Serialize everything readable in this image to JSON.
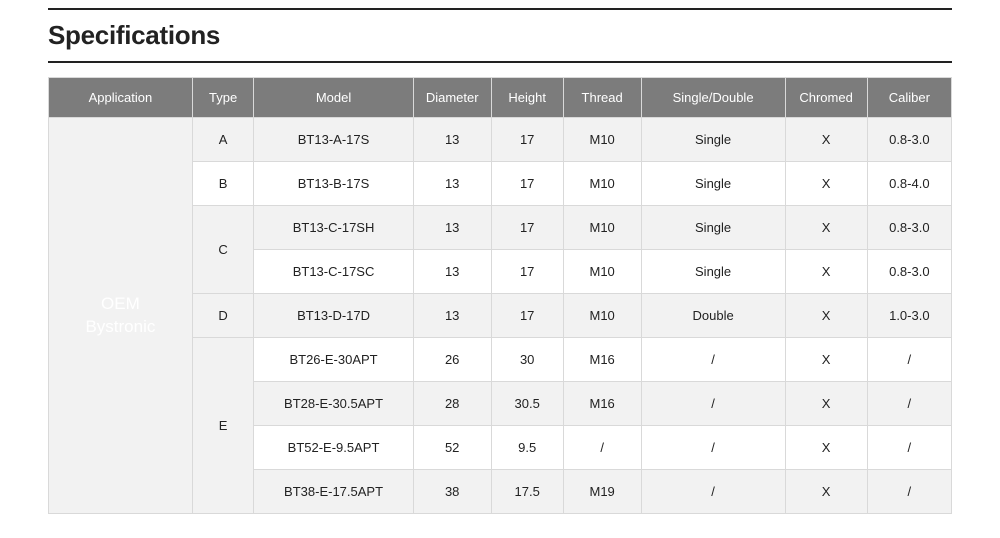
{
  "title": "Specifications",
  "colors": {
    "header_bg": "#7c7c7c",
    "header_fg": "#ffffff",
    "row_odd_bg": "#f2f2f2",
    "row_even_bg": "#ffffff",
    "border": "#d9d9d9",
    "rule": "#222222"
  },
  "table": {
    "columns": [
      "Application",
      "Type",
      "Model",
      "Diameter",
      "Height",
      "Thread",
      "Single/Double",
      "Chromed",
      "Caliber"
    ],
    "application": "OEM\nBystronic",
    "type_groups": [
      {
        "type": "A",
        "rows": 1
      },
      {
        "type": "B",
        "rows": 1
      },
      {
        "type": "C",
        "rows": 2
      },
      {
        "type": "D",
        "rows": 1
      },
      {
        "type": "E",
        "rows": 4
      }
    ],
    "rows": [
      {
        "type": "A",
        "model": "BT13-A-17S",
        "diameter": "13",
        "height": "17",
        "thread": "M10",
        "sd": "Single",
        "chromed": "X",
        "caliber": "0.8-3.0"
      },
      {
        "type": "B",
        "model": "BT13-B-17S",
        "diameter": "13",
        "height": "17",
        "thread": "M10",
        "sd": "Single",
        "chromed": "X",
        "caliber": "0.8-4.0"
      },
      {
        "type": "C",
        "model": "BT13-C-17SH",
        "diameter": "13",
        "height": "17",
        "thread": "M10",
        "sd": "Single",
        "chromed": "X",
        "caliber": "0.8-3.0"
      },
      {
        "type": "C",
        "model": "BT13-C-17SC",
        "diameter": "13",
        "height": "17",
        "thread": "M10",
        "sd": "Single",
        "chromed": "X",
        "caliber": "0.8-3.0"
      },
      {
        "type": "D",
        "model": "BT13-D-17D",
        "diameter": "13",
        "height": "17",
        "thread": "M10",
        "sd": "Double",
        "chromed": "X",
        "caliber": "1.0-3.0"
      },
      {
        "type": "E",
        "model": "BT26-E-30APT",
        "diameter": "26",
        "height": "30",
        "thread": "M16",
        "sd": "/",
        "chromed": "X",
        "caliber": "/"
      },
      {
        "type": "E",
        "model": "BT28-E-30.5APT",
        "diameter": "28",
        "height": "30.5",
        "thread": "M16",
        "sd": "/",
        "chromed": "X",
        "caliber": "/"
      },
      {
        "type": "E",
        "model": "BT52-E-9.5APT",
        "diameter": "52",
        "height": "9.5",
        "thread": "/",
        "sd": "/",
        "chromed": "X",
        "caliber": "/"
      },
      {
        "type": "E",
        "model": "BT38-E-17.5APT",
        "diameter": "38",
        "height": "17.5",
        "thread": "M19",
        "sd": "/",
        "chromed": "X",
        "caliber": "/"
      }
    ]
  }
}
